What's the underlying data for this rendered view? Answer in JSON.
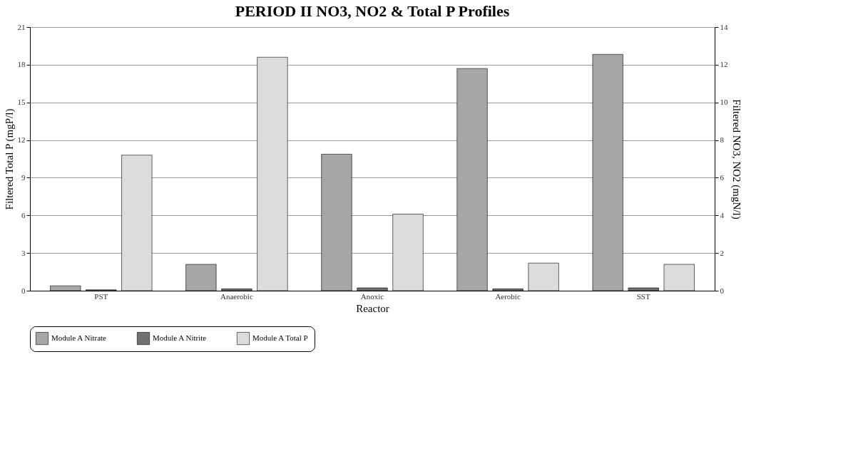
{
  "chart_data": {
    "type": "bar",
    "title": "PERIOD II NO3, NO2 & Total P Profiles",
    "xlabel": "Reactor",
    "ylabel": "Filtered Total P  (mgP/l)",
    "y2label": "Filtered NO3, NO2  (mgN/l)",
    "categories": [
      "PST",
      "Anaerobic",
      "Anoxic",
      "Aerobic",
      "SST"
    ],
    "series": [
      {
        "name": "Module A Nitrate",
        "color": "#a6a6a6",
        "axis": "y2",
        "values": [
          0.26,
          1.4,
          7.25,
          11.8,
          12.55
        ]
      },
      {
        "name": "Module A Nitrite",
        "color": "#707070",
        "axis": "y2",
        "values": [
          0.05,
          0.1,
          0.15,
          0.1,
          0.15
        ]
      },
      {
        "name": "Module A Total P",
        "color": "#dcdcdc",
        "values": [
          10.8,
          18.6,
          6.1,
          2.2,
          2.1
        ]
      }
    ],
    "ylim": [
      0,
      21
    ],
    "yticks": [
      0,
      3,
      6,
      9,
      12,
      15,
      18,
      21
    ],
    "y2lim": [
      0,
      14
    ],
    "y2ticks": [
      0,
      2,
      4,
      6,
      8,
      10,
      12,
      14
    ],
    "grid": "y",
    "legend": "bottom"
  }
}
